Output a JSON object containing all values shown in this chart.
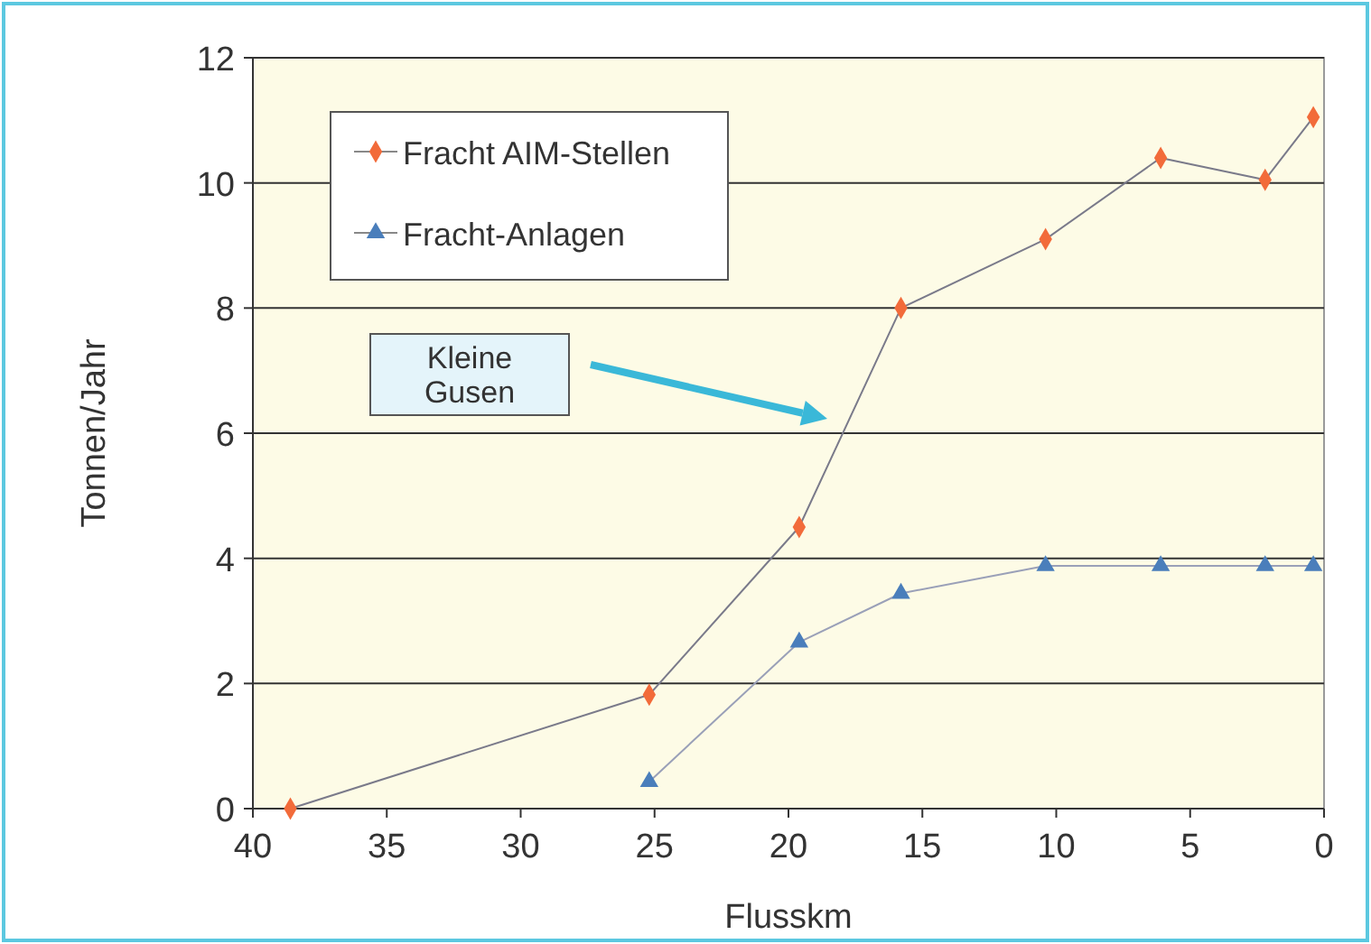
{
  "chart_data": {
    "type": "line",
    "xlabel": "Flusskm",
    "ylabel": "Tonnen/Jahr",
    "xlim": [
      40,
      0
    ],
    "xticks": [
      40,
      35,
      30,
      25,
      20,
      15,
      10,
      5,
      0
    ],
    "ylim": [
      0,
      12
    ],
    "yticks": [
      0,
      2,
      4,
      6,
      8,
      10,
      12
    ],
    "grid": "y",
    "legend": "top left",
    "series": [
      {
        "name": "Fracht AIM-Stellen",
        "color": "#f26b3a",
        "marker": "diamond",
        "x": [
          38.6,
          25.2,
          19.6,
          15.8,
          10.4,
          6.1,
          2.2,
          0.4
        ],
        "values": [
          0,
          1.82,
          4.5,
          8.0,
          9.1,
          10.4,
          10.05,
          11.05
        ]
      },
      {
        "name": "Fracht-Anlagen",
        "color": "#4a7ebb",
        "marker": "triangle",
        "x": [
          25.2,
          19.6,
          15.8,
          10.4,
          6.1,
          2.2,
          0.4
        ],
        "values": [
          0.43,
          2.66,
          3.44,
          3.88,
          3.88,
          3.88,
          3.88
        ]
      }
    ],
    "annotations": [
      "Kleine Gusen"
    ]
  }
}
